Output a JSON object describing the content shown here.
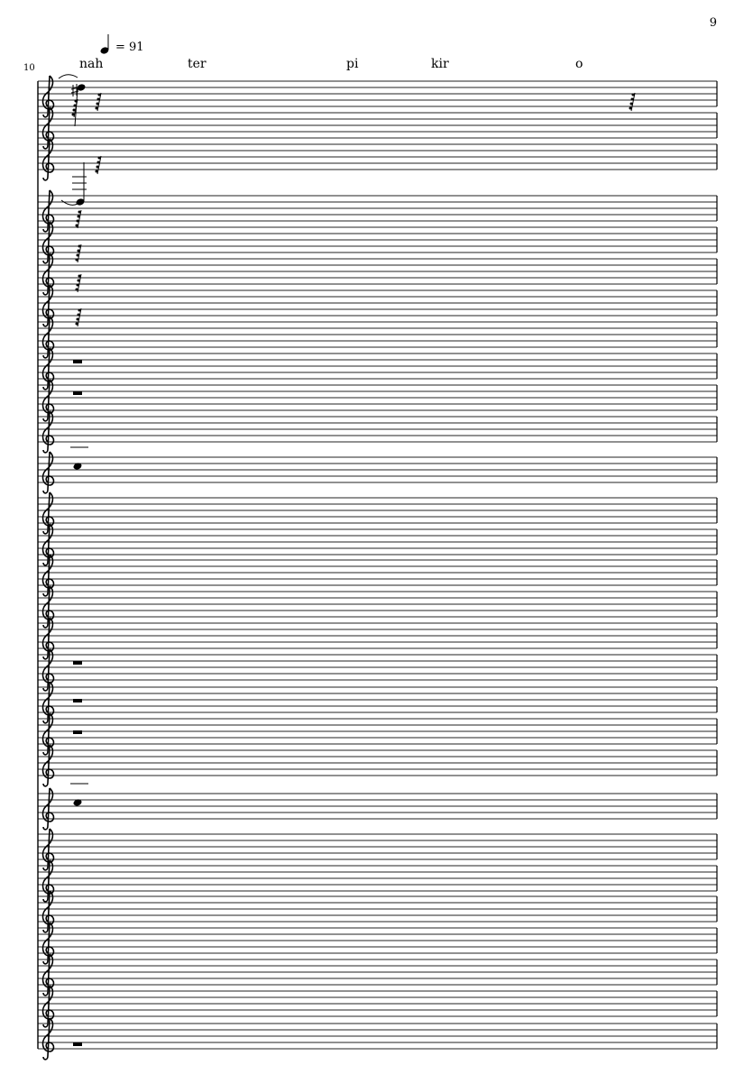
{
  "page": {
    "number": "9"
  },
  "system": {
    "measure_number": "10"
  },
  "tempo": {
    "symbol": "quarter-note",
    "text": "= 91"
  },
  "lyrics": [
    "nah",
    "ter",
    "pi",
    "kir",
    "o"
  ],
  "icons": {
    "clef": "treble-clef-icon",
    "sharp": "sharp-icon",
    "rest": "rest-icon"
  }
}
